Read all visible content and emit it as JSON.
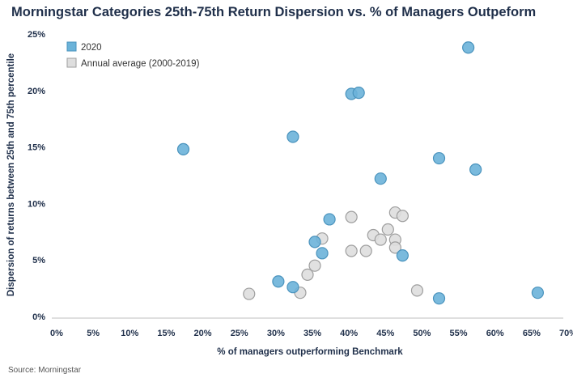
{
  "chart_data": {
    "type": "scatter",
    "title": "Morningstar Categories 25th-75th Return Dispersion vs. % of Managers Outpeform",
    "xlabel": "% of managers outperforming Benchmark",
    "ylabel": "Dispersion of returns between 25th and 75th percentile",
    "xlim": [
      0,
      70
    ],
    "ylim": [
      0,
      25
    ],
    "x_ticks": [
      "0%",
      "5%",
      "10%",
      "15%",
      "20%",
      "25%",
      "30%",
      "35%",
      "40%",
      "45%",
      "50%",
      "55%",
      "60%",
      "65%",
      "70%"
    ],
    "y_ticks": [
      "0%",
      "5%",
      "10%",
      "15%",
      "20%",
      "25%"
    ],
    "grid": false,
    "legend_position": "top-left",
    "series": [
      {
        "name": "2020",
        "color": "#6bb3d9",
        "stroke": "#4a93bd",
        "points": [
          [
            18,
            14.8
          ],
          [
            33,
            15.9
          ],
          [
            41,
            19.7
          ],
          [
            42,
            19.8
          ],
          [
            57,
            23.8
          ],
          [
            53,
            14.0
          ],
          [
            58,
            13.0
          ],
          [
            45,
            12.2
          ],
          [
            38,
            8.6
          ],
          [
            36,
            6.6
          ],
          [
            37,
            5.6
          ],
          [
            48,
            5.4
          ],
          [
            31,
            3.1
          ],
          [
            33,
            2.6
          ],
          [
            53,
            1.6
          ],
          [
            66.5,
            2.1
          ]
        ]
      },
      {
        "name": "Annual average (2000-2019)",
        "color": "#dedede",
        "stroke": "#9e9e9e",
        "points": [
          [
            27,
            2.0
          ],
          [
            34,
            2.1
          ],
          [
            35,
            3.7
          ],
          [
            36,
            4.5
          ],
          [
            37,
            6.9
          ],
          [
            41,
            8.8
          ],
          [
            41,
            5.8
          ],
          [
            43,
            5.8
          ],
          [
            44,
            7.2
          ],
          [
            45,
            6.8
          ],
          [
            46,
            7.7
          ],
          [
            47,
            9.2
          ],
          [
            48,
            8.9
          ],
          [
            47,
            6.8
          ],
          [
            47,
            6.1
          ],
          [
            50,
            2.3
          ]
        ]
      }
    ]
  },
  "source": "Source: Morningstar"
}
